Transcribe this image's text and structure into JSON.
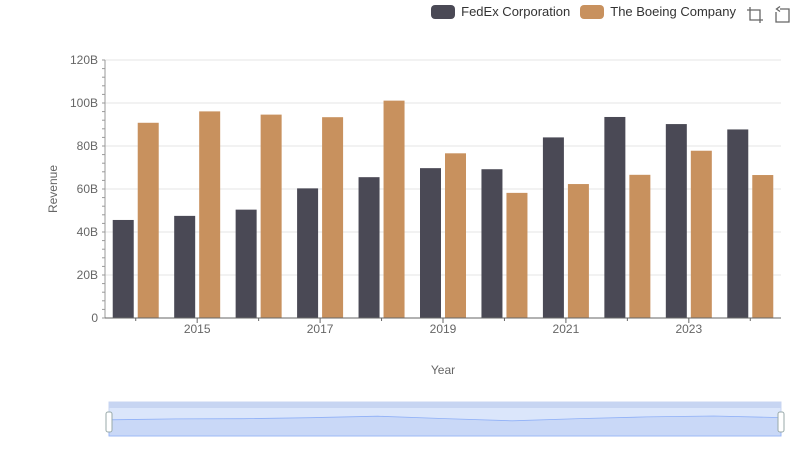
{
  "chart_data": {
    "type": "bar",
    "title": "",
    "xlabel": "Year",
    "ylabel": "Revenue",
    "ylim": [
      0,
      120000000000
    ],
    "yticks": [
      "0",
      "20B",
      "40B",
      "60B",
      "80B",
      "100B",
      "120B"
    ],
    "x": [
      2014,
      2015,
      2016,
      2017,
      2018,
      2019,
      2020,
      2021,
      2022,
      2023,
      2024
    ],
    "xtick_labels": [
      "2015",
      "2017",
      "2019",
      "2021",
      "2023"
    ],
    "grid": true,
    "legend_position": "top-right",
    "series": [
      {
        "name": "FedEx Corporation",
        "color": "#4a4955",
        "values": [
          45600000000,
          47500000000,
          50400000000,
          60300000000,
          65500000000,
          69700000000,
          69200000000,
          84000000000,
          93500000000,
          90200000000,
          87700000000
        ]
      },
      {
        "name": "The Boeing Company",
        "color": "#c8915e",
        "values": [
          90800000000,
          96100000000,
          94600000000,
          93400000000,
          101100000000,
          76600000000,
          58200000000,
          62300000000,
          66600000000,
          77800000000,
          66500000000
        ]
      }
    ]
  },
  "toolbar": {
    "icons": [
      "zoom-select-icon",
      "zoom-reset-icon"
    ]
  },
  "colors": {
    "grid": "#e6e6e6",
    "axis": "#666666",
    "slider_fill": "#dbe6fb",
    "slider_line": "#8fb0f7"
  }
}
